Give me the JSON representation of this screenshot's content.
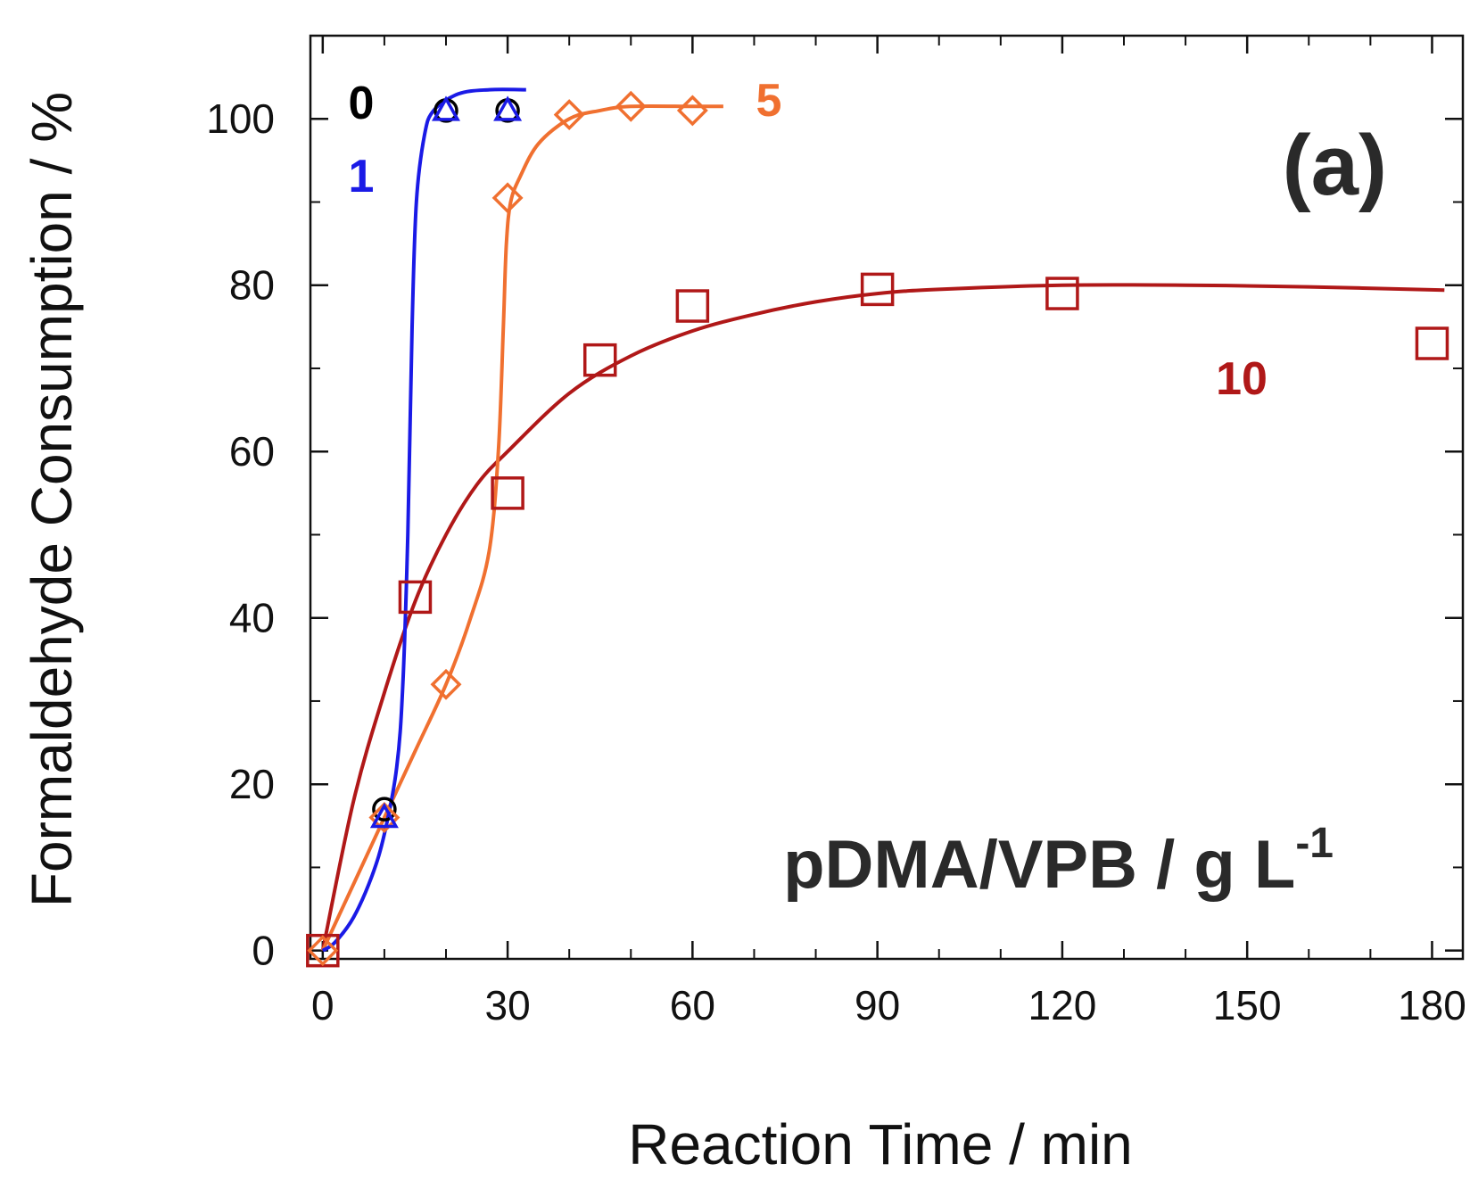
{
  "chart_data": {
    "type": "line",
    "title": "",
    "panel_label": "(a)",
    "xlabel": "Reaction Time / min",
    "ylabel": "Formaldehyde Consumption / %",
    "xlim": [
      -2,
      185
    ],
    "ylim": [
      -1,
      110
    ],
    "xticks": [
      0,
      30,
      60,
      90,
      120,
      150,
      180
    ],
    "yticks": [
      0,
      20,
      40,
      60,
      80,
      100
    ],
    "x_minor_step": 10,
    "y_minor_step": 10,
    "grid": false,
    "annotation": {
      "main": "pDMA/VPB / g L",
      "superscript": "-1"
    },
    "series": [
      {
        "name": "0",
        "label": "0",
        "color": "#000000",
        "marker": "circle",
        "points": [
          [
            10,
            17
          ],
          [
            20,
            101
          ],
          [
            30,
            101
          ]
        ],
        "fit": []
      },
      {
        "name": "1",
        "label": "1",
        "color": "#1a1ae6",
        "marker": "triangle",
        "points": [
          [
            10,
            16
          ],
          [
            20,
            101
          ],
          [
            30,
            101
          ]
        ],
        "fit": [
          [
            0,
            0
          ],
          [
            2,
            1
          ],
          [
            5,
            4
          ],
          [
            8,
            9
          ],
          [
            10,
            14
          ],
          [
            12,
            22
          ],
          [
            13,
            32
          ],
          [
            13.8,
            50
          ],
          [
            14.5,
            75
          ],
          [
            15.2,
            90
          ],
          [
            16.5,
            98
          ],
          [
            18,
            101
          ],
          [
            22,
            103
          ],
          [
            27,
            103.5
          ],
          [
            33,
            103.5
          ]
        ]
      },
      {
        "name": "5",
        "label": "5",
        "color": "#f07030",
        "marker": "diamond",
        "points": [
          [
            0,
            0
          ],
          [
            10,
            16
          ],
          [
            20,
            32
          ],
          [
            30,
            90.5
          ],
          [
            40,
            100.5
          ],
          [
            50,
            101.5
          ],
          [
            60,
            101
          ]
        ],
        "fit": [
          [
            0,
            0
          ],
          [
            5,
            8
          ],
          [
            10,
            16
          ],
          [
            15,
            24
          ],
          [
            20,
            32
          ],
          [
            24,
            40
          ],
          [
            27,
            48
          ],
          [
            28.5,
            60
          ],
          [
            29.3,
            75
          ],
          [
            29.8,
            85
          ],
          [
            30.5,
            90
          ],
          [
            32,
            93
          ],
          [
            35,
            97
          ],
          [
            40,
            100
          ],
          [
            45,
            101
          ],
          [
            50,
            101.5
          ],
          [
            60,
            101.5
          ],
          [
            65,
            101.5
          ]
        ]
      },
      {
        "name": "10",
        "label": "10",
        "color": "#b01818",
        "marker": "square",
        "points": [
          [
            0,
            0
          ],
          [
            15,
            42.5
          ],
          [
            30,
            55
          ],
          [
            45,
            71
          ],
          [
            60,
            77.5
          ],
          [
            90,
            79.5
          ],
          [
            120,
            79
          ],
          [
            180,
            73
          ]
        ],
        "fit": [
          [
            0,
            0
          ],
          [
            5,
            18
          ],
          [
            10,
            31
          ],
          [
            15,
            42
          ],
          [
            20,
            50
          ],
          [
            25,
            56
          ],
          [
            30,
            60
          ],
          [
            40,
            67
          ],
          [
            50,
            71.5
          ],
          [
            60,
            74.5
          ],
          [
            70,
            76.5
          ],
          [
            80,
            78
          ],
          [
            90,
            79
          ],
          [
            100,
            79.5
          ],
          [
            120,
            80
          ],
          [
            140,
            80
          ],
          [
            160,
            79.8
          ],
          [
            182,
            79.4
          ]
        ]
      }
    ]
  }
}
